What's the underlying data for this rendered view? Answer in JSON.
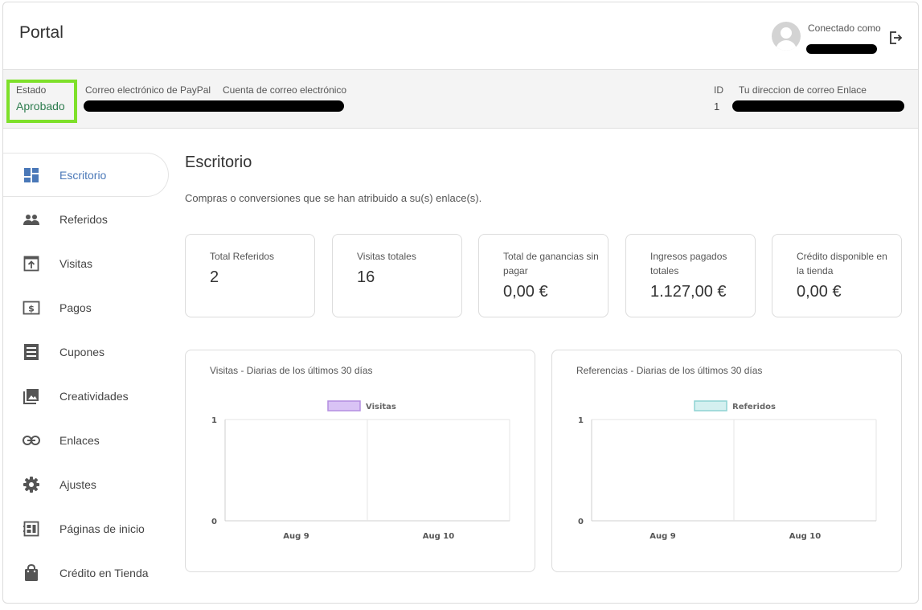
{
  "header": {
    "title": "Portal",
    "connected_label": "Conectado como"
  },
  "infobar": {
    "status_label": "Estado",
    "status_value": "Aprobado",
    "paypal_label": "Correo electrónico de PayPal",
    "account_label": "Cuenta de correo electrónico",
    "id_label": "ID",
    "id_value": "1",
    "link_email_label": "Tu direccion de correo Enlace"
  },
  "sidebar": {
    "items": [
      {
        "label": "Escritorio",
        "icon": "dashboard-icon",
        "active": true
      },
      {
        "label": "Referidos",
        "icon": "people-icon"
      },
      {
        "label": "Visitas",
        "icon": "visits-icon"
      },
      {
        "label": "Pagos",
        "icon": "payments-icon"
      },
      {
        "label": "Cupones",
        "icon": "coupons-icon"
      },
      {
        "label": "Creatividades",
        "icon": "creatives-icon"
      },
      {
        "label": "Enlaces",
        "icon": "link-icon"
      },
      {
        "label": "Ajustes",
        "icon": "gear-icon"
      },
      {
        "label": "Páginas de inicio",
        "icon": "landing-pages-icon"
      },
      {
        "label": "Crédito en Tienda",
        "icon": "shopping-bag-icon"
      }
    ]
  },
  "main": {
    "title": "Escritorio",
    "subtitle": "Compras o conversiones que se han atribuido a su(s) enlace(s)."
  },
  "stats": [
    {
      "label": "Total Referidos",
      "value": "2"
    },
    {
      "label": "Visitas totales",
      "value": "16"
    },
    {
      "label": "Total de ganancias sin pagar",
      "value": "0,00 €"
    },
    {
      "label": "Ingresos pagados totales",
      "value": "1.127,00 €"
    },
    {
      "label": "Crédito disponible en la tienda",
      "value": "0,00 €"
    }
  ],
  "colors": {
    "accent": "#4a78b8",
    "status_green": "#2e7d4f",
    "highlight_border": "#7ee02a",
    "visits_series": "#d9c3f5",
    "referrals_series": "#d4f0f0"
  },
  "chart_data": [
    {
      "type": "line",
      "title": "Visitas - Diarias de los últimos 30 días",
      "categories": [
        "Aug 9",
        "Aug 10"
      ],
      "series": [
        {
          "name": "Visitas",
          "values": [
            0,
            0
          ]
        }
      ],
      "yticks": [
        "0",
        "1"
      ],
      "ylim": [
        0,
        1
      ],
      "legend": "top",
      "grid": true
    },
    {
      "type": "line",
      "title": "Referencias - Diarias de los últimos 30 días",
      "categories": [
        "Aug 9",
        "Aug 10"
      ],
      "series": [
        {
          "name": "Referidos",
          "values": [
            0,
            0
          ]
        }
      ],
      "yticks": [
        "0",
        "1"
      ],
      "ylim": [
        0,
        1
      ],
      "legend": "top",
      "grid": true
    }
  ]
}
